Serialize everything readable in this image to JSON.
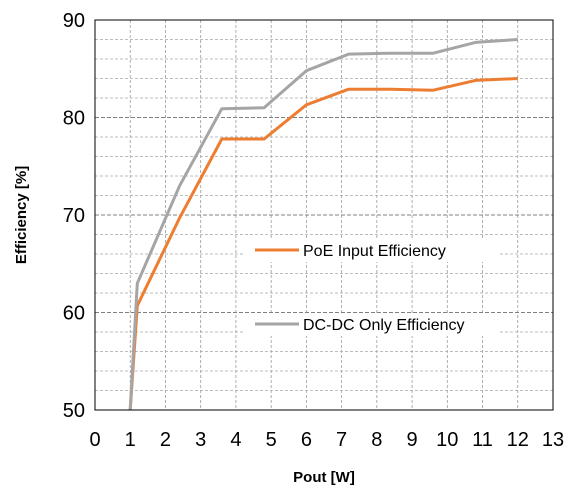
{
  "chart_data": {
    "type": "line",
    "title": "",
    "xlabel": "Pout [W]",
    "ylabel": "Efficiency [%]",
    "xlim": [
      0,
      13
    ],
    "ylim": [
      50,
      90
    ],
    "x_ticks": [
      0,
      1,
      2,
      3,
      4,
      5,
      6,
      7,
      8,
      9,
      10,
      11,
      12,
      13
    ],
    "y_ticks": [
      50,
      60,
      70,
      80,
      90
    ],
    "x_minor_step": 1,
    "y_minor_step": 2,
    "grid": {
      "major": true,
      "minor": true,
      "style": "dashed"
    },
    "legend": "center-right",
    "series": [
      {
        "name": "PoE Input Efficiency",
        "color": "#ED7D31",
        "x": [
          1.0,
          1.2,
          2.4,
          3.6,
          4.8,
          6.0,
          7.2,
          8.4,
          9.6,
          10.8,
          12.0
        ],
        "y": [
          50.0,
          60.7,
          69.7,
          77.8,
          77.8,
          81.3,
          82.9,
          82.9,
          82.8,
          83.8,
          84.0
        ]
      },
      {
        "name": "DC-DC Only Efficiency",
        "color": "#A5A5A5",
        "x": [
          1.0,
          1.2,
          2.4,
          3.6,
          4.8,
          6.0,
          7.2,
          8.4,
          9.6,
          10.8,
          12.0
        ],
        "y": [
          50.0,
          63.0,
          73.0,
          80.9,
          81.0,
          84.8,
          86.5,
          86.6,
          86.6,
          87.7,
          88.0
        ]
      }
    ]
  }
}
